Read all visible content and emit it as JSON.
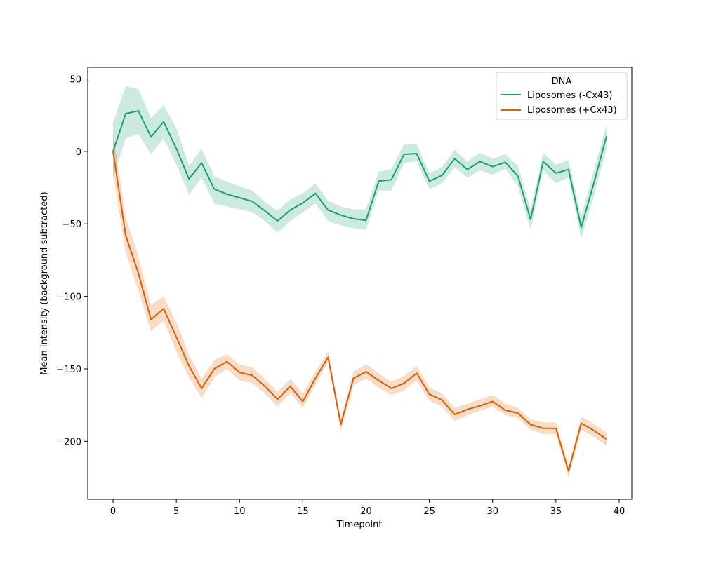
{
  "chart_data": {
    "type": "line",
    "title": "",
    "xlabel": "Timepoint",
    "ylabel": "Mean intensity (background subtracted)",
    "xlim": [
      -2,
      41
    ],
    "ylim": [
      -240,
      58
    ],
    "xticks": [
      0,
      5,
      10,
      15,
      20,
      25,
      30,
      35,
      40
    ],
    "yticks": [
      50,
      0,
      -50,
      -100,
      -150,
      -200
    ],
    "ytick_labels": [
      "50",
      "0",
      "−50",
      "−100",
      "−150",
      "−200"
    ],
    "grid": false,
    "legend": {
      "title": "DNA",
      "placement": "top-right"
    },
    "x": [
      0,
      1,
      2,
      3,
      4,
      5,
      6,
      7,
      8,
      9,
      10,
      11,
      12,
      13,
      14,
      15,
      16,
      17,
      18,
      19,
      20,
      21,
      22,
      23,
      24,
      25,
      26,
      27,
      28,
      29,
      30,
      31,
      32,
      33,
      34,
      35,
      36,
      37,
      38,
      39
    ],
    "series": [
      {
        "name": "Liposomes (-Cx43)",
        "color": "#1b9e77",
        "values": [
          0,
          26,
          28,
          10,
          20.5,
          2,
          -19,
          -8,
          -26,
          -29.5,
          -32,
          -34.5,
          -41,
          -48,
          -40.5,
          -35.5,
          -29,
          -40.5,
          -44,
          -46.5,
          -47.5,
          -20.5,
          -19.5,
          -2,
          -1.5,
          -20.5,
          -16.5,
          -5,
          -12.5,
          -7,
          -10.5,
          -7.5,
          -17,
          -47,
          -7,
          -15,
          -12.5,
          -52.5,
          -22,
          10.5
        ],
        "lower": [
          -18,
          9,
          12,
          -2,
          9,
          -9,
          -30,
          -18,
          -36,
          -38,
          -40,
          -42,
          -48,
          -56,
          -48,
          -42,
          -36,
          -48,
          -51,
          -53,
          -54,
          -27,
          -27,
          -8,
          -7,
          -26,
          -22,
          -11,
          -18,
          -13,
          -16,
          -12,
          -24,
          -54,
          -13,
          -22,
          -18,
          -60,
          -31,
          2
        ],
        "upper": [
          20,
          45,
          43,
          23,
          32,
          16,
          -10,
          2,
          -17,
          -21,
          -24,
          -27,
          -35,
          -41,
          -33,
          -29,
          -22,
          -34,
          -38,
          -40,
          -40,
          -14,
          -12,
          5,
          5,
          -15,
          -11,
          1,
          -7,
          -1,
          -5,
          -2,
          -10,
          -40,
          -1,
          -9,
          -6,
          -45,
          -13,
          18
        ]
      },
      {
        "name": "Liposomes (+Cx43)",
        "color": "#d95f02",
        "values": [
          0,
          -58,
          -84,
          -116,
          -108.5,
          -128,
          -148,
          -163.5,
          -150,
          -145,
          -152.5,
          -154.5,
          -162,
          -171,
          -162,
          -172.5,
          -156.5,
          -142,
          -188.5,
          -156.5,
          -152,
          -158,
          -163.5,
          -160,
          -153,
          -167.5,
          -171.5,
          -181.5,
          -178,
          -175.5,
          -172.5,
          -178.5,
          -180.5,
          -188.5,
          -191,
          -191,
          -220.5,
          -187.5,
          -192.5,
          -198.5
        ],
        "lower": [
          -15,
          -70,
          -96,
          -124,
          -117,
          -138,
          -156,
          -170,
          -156,
          -150,
          -158,
          -160,
          -167,
          -176,
          -167,
          -177,
          -161,
          -145,
          -193,
          -161,
          -157,
          -163,
          -168,
          -165,
          -158,
          -172,
          -176,
          -186,
          -182,
          -179,
          -176,
          -182,
          -184,
          -192,
          -195,
          -195,
          -225,
          -192,
          -197,
          -203
        ],
        "upper": [
          13,
          -46,
          -72,
          -106,
          -100,
          -118,
          -140,
          -157,
          -144,
          -140,
          -147,
          -149,
          -157,
          -166,
          -157,
          -167,
          -152,
          -138,
          -184,
          -152,
          -147,
          -153,
          -159,
          -155,
          -148,
          -163,
          -167,
          -177,
          -174,
          -171,
          -168,
          -174,
          -177,
          -185,
          -187,
          -187,
          -217,
          -183,
          -188,
          -194
        ]
      }
    ]
  }
}
